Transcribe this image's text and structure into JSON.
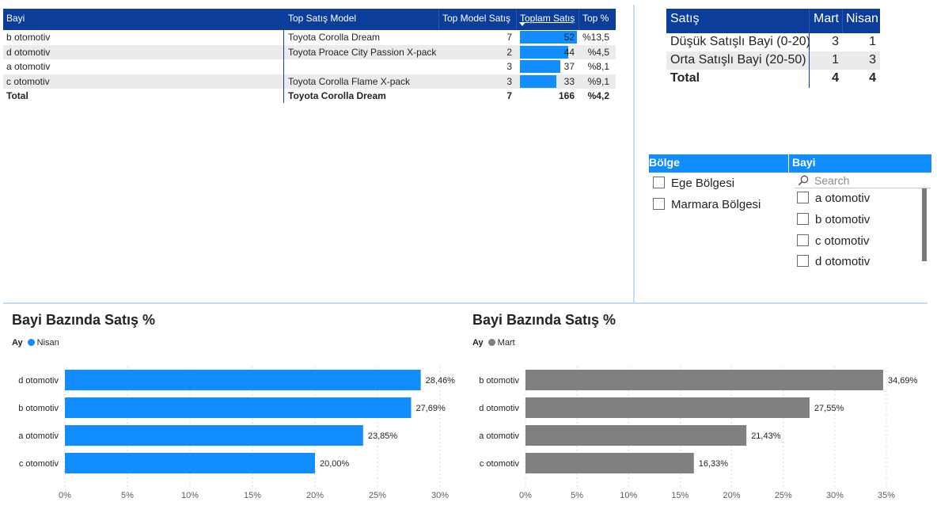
{
  "table": {
    "headers": [
      "Bayi",
      "Top Satış Model",
      "Top Model Satış",
      "Toplam Satış",
      "Top %"
    ],
    "rows": [
      {
        "bayi": "b otomotiv",
        "model": "Toyota Corolla Dream",
        "top_model": "7",
        "toplam": 52,
        "top_pct": "%13,5"
      },
      {
        "bayi": "d otomotiv",
        "model": "Toyota Proace City Passion X-pack",
        "top_model": "2",
        "toplam": 44,
        "top_pct": "%4,5"
      },
      {
        "bayi": "a otomotiv",
        "model": "",
        "top_model": "3",
        "toplam": 37,
        "top_pct": "%8,1"
      },
      {
        "bayi": "c otomotiv",
        "model": "Toyota Corolla Flame X-pack",
        "top_model": "3",
        "toplam": 33,
        "top_pct": "%9,1"
      }
    ],
    "total": {
      "label": "Total",
      "model": "Toyota Corolla Dream",
      "top_model": "7",
      "toplam": "166",
      "top_pct": "%4,2"
    },
    "bar_color": "#118dff",
    "header_color": "#0d3d9a"
  },
  "matrix": {
    "headers": [
      "Satış",
      "Mart",
      "Nisan"
    ],
    "rows": [
      {
        "label": "Düşük Satışlı Bayi (0-20)",
        "mart": "3",
        "nisan": "1"
      },
      {
        "label": "Orta Satışlı Bayi (20-50)",
        "mart": "1",
        "nisan": "3"
      }
    ],
    "total": {
      "label": "Total",
      "mart": "4",
      "nisan": "4"
    }
  },
  "slicer_bolge": {
    "title": "Bölge",
    "items": [
      "Ege Bölgesi",
      "Marmara Bölgesi"
    ]
  },
  "slicer_bayi": {
    "title": "Bayi",
    "search_placeholder": "Search",
    "items": [
      "a otomotiv",
      "b otomotiv",
      "c otomotiv",
      "d otomotiv"
    ]
  },
  "chart_data": [
    {
      "type": "bar",
      "orientation": "horizontal",
      "title": "Bayi Bazında Satış %",
      "legend_title": "Ay",
      "legend_position": "top-left",
      "grid": true,
      "categories": [
        "d otomotiv",
        "b otomotiv",
        "a otomotiv",
        "c otomotiv"
      ],
      "series": [
        {
          "name": "Nisan",
          "values": [
            28.46,
            27.69,
            23.85,
            20.0
          ],
          "labels": [
            "28,46%",
            "27,69%",
            "23,85%",
            "20,00%"
          ],
          "color": "#118dff"
        }
      ],
      "xlim": [
        0,
        30
      ],
      "xticks": [
        "0%",
        "5%",
        "10%",
        "15%",
        "20%",
        "25%",
        "30%"
      ]
    },
    {
      "type": "bar",
      "orientation": "horizontal",
      "title": "Bayi Bazında Satış %",
      "legend_title": "Ay",
      "legend_position": "top-left",
      "grid": true,
      "categories": [
        "b otomotiv",
        "d otomotiv",
        "a otomotiv",
        "c otomotiv"
      ],
      "series": [
        {
          "name": "Mart",
          "values": [
            34.69,
            27.55,
            21.43,
            16.33
          ],
          "labels": [
            "34,69%",
            "27,55%",
            "21,43%",
            "16,33%"
          ],
          "color": "#808080"
        }
      ],
      "xlim": [
        0,
        35
      ],
      "xticks": [
        "0%",
        "5%",
        "10%",
        "15%",
        "20%",
        "25%",
        "30%",
        "35%"
      ]
    }
  ]
}
